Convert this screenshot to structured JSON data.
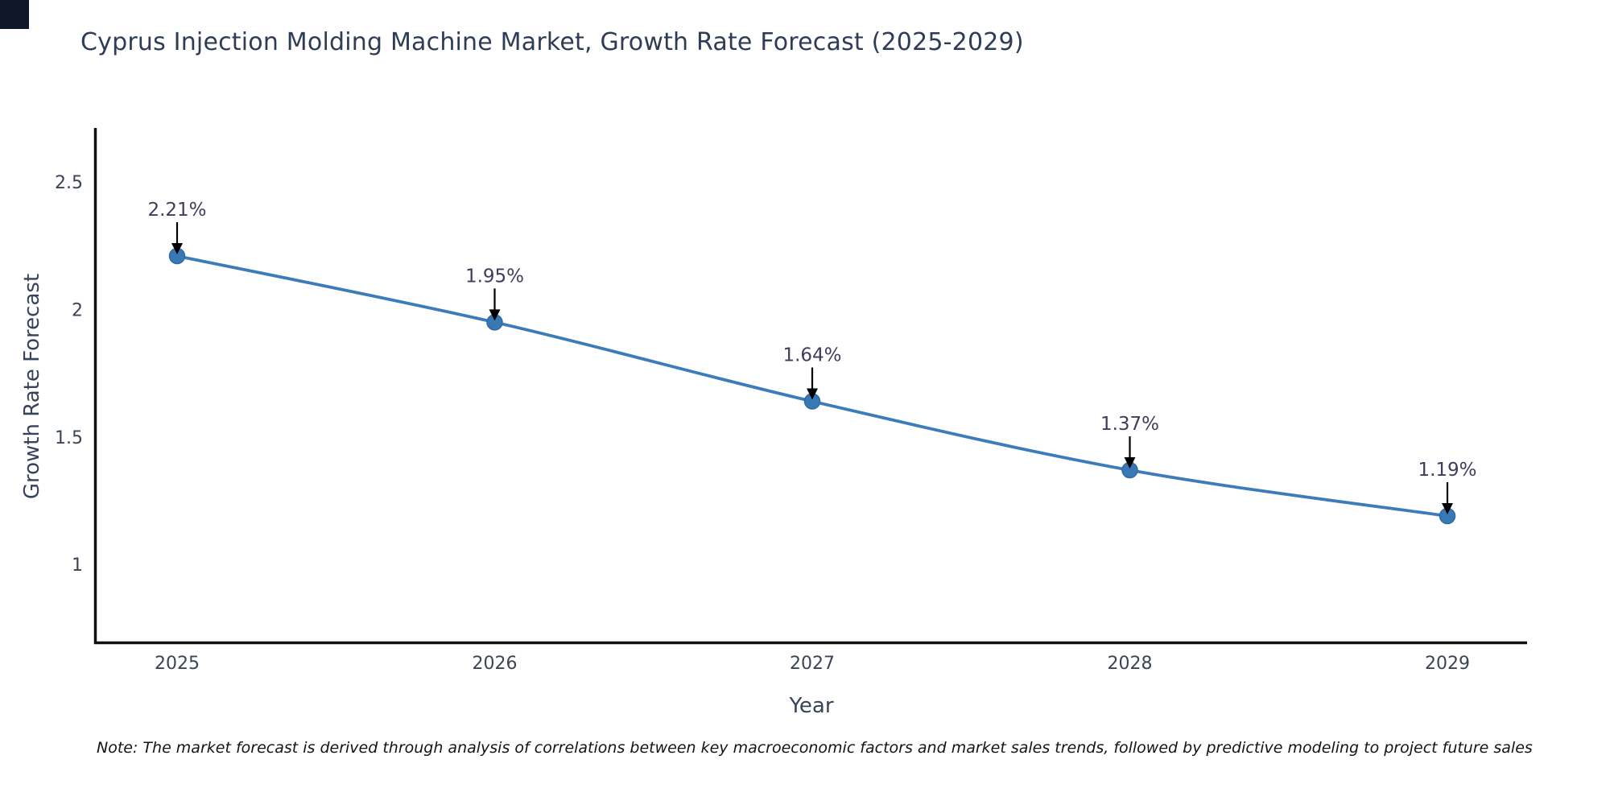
{
  "corner_mark_color": "#0f1729",
  "chart_data": {
    "type": "line",
    "title": "Cyprus Injection Molding Machine Market, Growth Rate Forecast (2025-2029)",
    "xlabel": "Year",
    "ylabel": "Growth Rate Forecast",
    "categories": [
      "2025",
      "2026",
      "2027",
      "2028",
      "2029"
    ],
    "values": [
      2.21,
      1.95,
      1.64,
      1.37,
      1.19
    ],
    "point_labels": [
      "2.21%",
      "1.95%",
      "1.64%",
      "1.37%",
      "1.19%"
    ],
    "yticks": [
      "1",
      "1.5",
      "2",
      "2.5"
    ],
    "ytick_values": [
      1,
      1.5,
      2,
      2.5
    ],
    "ylim": [
      0.69,
      2.71
    ],
    "grid": false,
    "legend": false,
    "annotations_have_arrows": true,
    "colors": {
      "line": "#3d7cba",
      "marker": "#3878b5",
      "marker_edge": "#2f6ba3",
      "arrow": "#000000",
      "axis": "#111111",
      "title_text": "#2e3c55",
      "tick_text": "#3a4558",
      "axis_title_text": "#36435a",
      "annotation_text": "#3f3d5c"
    }
  },
  "note": {
    "text": "Note: The market forecast is derived through analysis of correlations between key macroeconomic factors and market sales trends, followed by predictive modeling to project future sales"
  }
}
